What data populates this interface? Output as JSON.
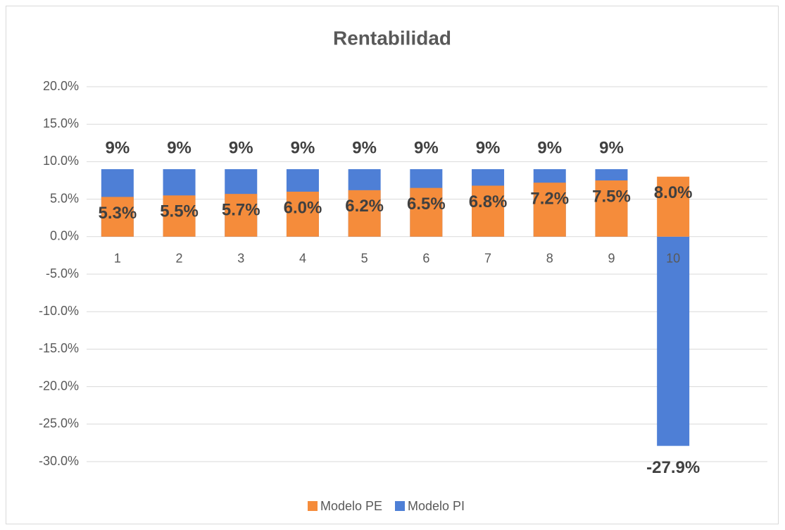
{
  "chart_data": {
    "type": "bar",
    "title": "Rentabilidad",
    "categories": [
      "1",
      "2",
      "3",
      "4",
      "5",
      "6",
      "7",
      "8",
      "9",
      "10"
    ],
    "series": [
      {
        "name": "Modelo PI",
        "color": "#4e7fd6",
        "values": [
          9,
          9,
          9,
          9,
          9,
          9,
          9,
          9,
          9,
          -27.9
        ],
        "value_labels": [
          "9%",
          "9%",
          "9%",
          "9%",
          "9%",
          "9%",
          "9%",
          "9%",
          "9%",
          "-27.9%"
        ]
      },
      {
        "name": "Modelo PE",
        "color": "#f58c3b",
        "values": [
          5.3,
          5.5,
          5.7,
          6.0,
          6.2,
          6.5,
          6.8,
          7.2,
          7.5,
          8.0
        ],
        "value_labels": [
          "5.3%",
          "5.5%",
          "5.7%",
          "6.0%",
          "6.2%",
          "6.5%",
          "6.8%",
          "7.2%",
          "7.5%",
          "8.0%"
        ]
      }
    ],
    "legend_order": [
      "Modelo PE",
      "Modelo PI"
    ],
    "ylim": [
      -30,
      20
    ],
    "yticks": [
      {
        "value": -30,
        "label": "-30.0%"
      },
      {
        "value": -25,
        "label": "-25.0%"
      },
      {
        "value": -20,
        "label": "-20.0%"
      },
      {
        "value": -15,
        "label": "-15.0%"
      },
      {
        "value": -10,
        "label": "-10.0%"
      },
      {
        "value": -5,
        "label": "-5.0%"
      },
      {
        "value": 0,
        "label": "0.0%"
      },
      {
        "value": 5,
        "label": "5.0%"
      },
      {
        "value": 10,
        "label": "10.0%"
      },
      {
        "value": 15,
        "label": "15.0%"
      },
      {
        "value": 20,
        "label": "20.0%"
      }
    ],
    "grid": true,
    "legend": "bottom"
  }
}
